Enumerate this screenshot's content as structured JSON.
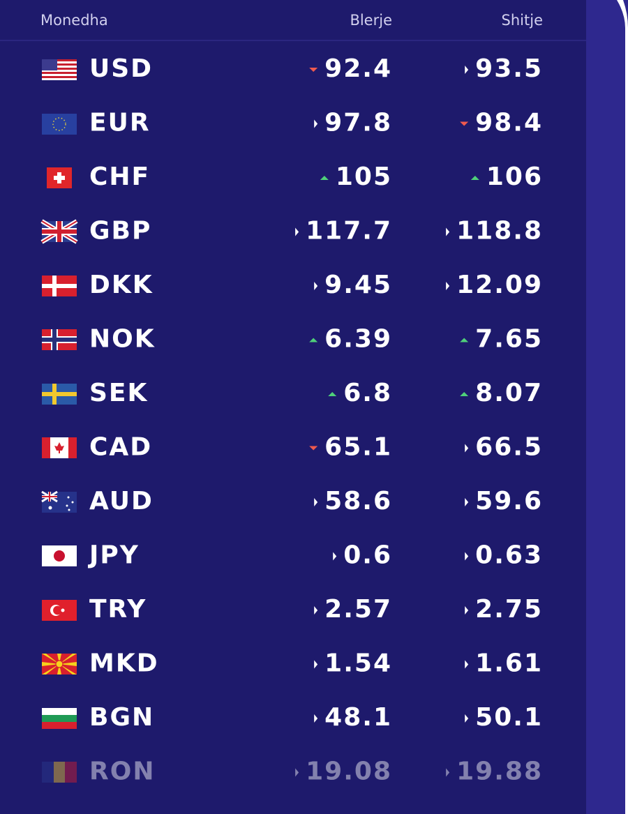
{
  "header": {
    "currency": "Monedha",
    "buy": "Blerje",
    "sell": "Shitje"
  },
  "rows": [
    {
      "code": "USD",
      "buy": 92.4,
      "buy_trend": "down",
      "sell": 93.5,
      "sell_trend": "flat"
    },
    {
      "code": "EUR",
      "buy": 97.8,
      "buy_trend": "flat",
      "sell": 98.4,
      "sell_trend": "down"
    },
    {
      "code": "CHF",
      "buy": 105,
      "buy_trend": "up",
      "sell": 106,
      "sell_trend": "up"
    },
    {
      "code": "GBP",
      "buy": 117.7,
      "buy_trend": "flat",
      "sell": 118.8,
      "sell_trend": "flat"
    },
    {
      "code": "DKK",
      "buy": 9.45,
      "buy_trend": "flat",
      "sell": 12.09,
      "sell_trend": "flat"
    },
    {
      "code": "NOK",
      "buy": 6.39,
      "buy_trend": "up",
      "sell": 7.65,
      "sell_trend": "up"
    },
    {
      "code": "SEK",
      "buy": 6.8,
      "buy_trend": "up",
      "sell": 8.07,
      "sell_trend": "up"
    },
    {
      "code": "CAD",
      "buy": 65.1,
      "buy_trend": "down",
      "sell": 66.5,
      "sell_trend": "flat"
    },
    {
      "code": "AUD",
      "buy": 58.6,
      "buy_trend": "flat",
      "sell": 59.6,
      "sell_trend": "flat"
    },
    {
      "code": "JPY",
      "buy": 0.6,
      "buy_trend": "flat",
      "sell": 0.63,
      "sell_trend": "flat"
    },
    {
      "code": "TRY",
      "buy": 2.57,
      "buy_trend": "flat",
      "sell": 2.75,
      "sell_trend": "flat"
    },
    {
      "code": "MKD",
      "buy": 1.54,
      "buy_trend": "flat",
      "sell": 1.61,
      "sell_trend": "flat"
    },
    {
      "code": "BGN",
      "buy": 48.1,
      "buy_trend": "flat",
      "sell": 50.1,
      "sell_trend": "flat"
    },
    {
      "code": "RON",
      "buy": 19.08,
      "buy_trend": "flat",
      "sell": 19.88,
      "sell_trend": "flat"
    }
  ]
}
